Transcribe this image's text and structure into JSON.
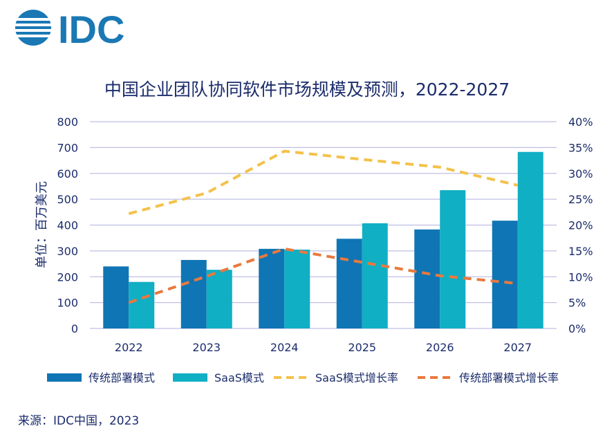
{
  "logo": {
    "text": "IDC",
    "color": "#1a78b4"
  },
  "title": "中国企业团队协同软件市场规模及预测，2022-2027",
  "source": "来源：IDC中国，2023",
  "colors": {
    "traditional": "#0f75b4",
    "saas": "#10afc4",
    "saas_growth": "#f3c24a",
    "trad_growth": "#e9793e",
    "grid": "#bfbfe6",
    "axis_text": "#1b2c6b"
  },
  "chart_data": {
    "type": "bar",
    "title": "中国企业团队协同软件市场规模及预测，2022-2027",
    "categories": [
      "2022",
      "2023",
      "2024",
      "2025",
      "2026",
      "2027"
    ],
    "ylabel": "单位：百万美元",
    "ylim": [
      0,
      800
    ],
    "y_ticks": [
      "0",
      "100",
      "200",
      "300",
      "400",
      "500",
      "600",
      "700",
      "800"
    ],
    "y2lim": [
      0,
      40
    ],
    "y2_ticks": [
      "0%",
      "5%",
      "10%",
      "15%",
      "20%",
      "25%",
      "30%",
      "35%",
      "40%"
    ],
    "grid": true,
    "legend_position": "bottom",
    "series": [
      {
        "name": "传统部署模式",
        "kind": "bar",
        "axis": "left",
        "values": [
          240,
          265,
          308,
          347,
          383,
          417
        ]
      },
      {
        "name": "SaaS模式",
        "kind": "bar",
        "axis": "left",
        "values": [
          180,
          227,
          305,
          407,
          535,
          683
        ]
      },
      {
        "name": "SaaS模式增长率",
        "kind": "line",
        "style": "dashed",
        "axis": "right",
        "values": [
          22.2,
          26.2,
          34.3,
          32.7,
          31.2,
          27.7
        ]
      },
      {
        "name": "传统部署模式增长率",
        "kind": "line",
        "style": "dashed",
        "axis": "right",
        "values": [
          5.0,
          10.1,
          15.4,
          12.8,
          10.2,
          8.7
        ]
      }
    ]
  }
}
